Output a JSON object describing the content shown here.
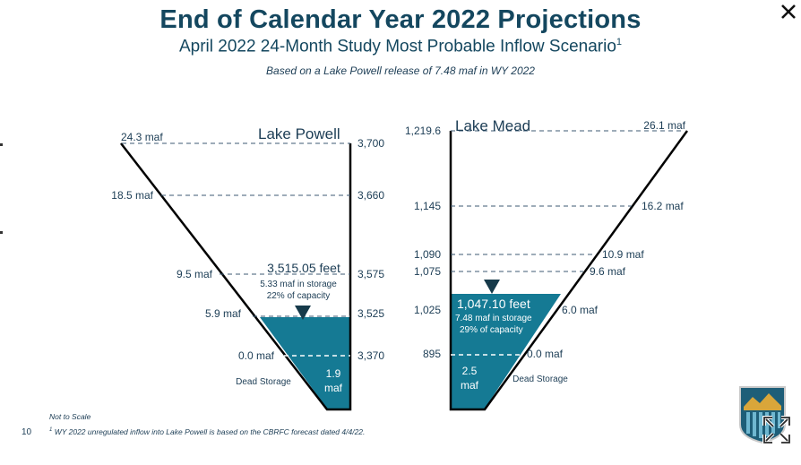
{
  "header": {
    "title": "End of Calendar Year 2022 Projections",
    "subtitle": "April 2022 24-Month Study Most Probable Inflow Scenario",
    "subtitle_sup": "1",
    "basis": "Based on a Lake Powell release of 7.48 maf in WY 2022"
  },
  "powell": {
    "name": "Lake Powell",
    "levels": [
      {
        "elevation": "3,700",
        "storage": "24.3 maf"
      },
      {
        "elevation": "3,660",
        "storage": "18.5 maf"
      },
      {
        "elevation": "3,575",
        "storage": "9.5 maf"
      },
      {
        "elevation": "3,525",
        "storage": "5.9 maf"
      },
      {
        "elevation": "3,370",
        "storage": "0.0 maf"
      }
    ],
    "projection": {
      "elevation": "3,515.05 feet",
      "storage": "5.33 maf in storage",
      "capacity": "22% of capacity"
    },
    "dead_storage_label": "Dead Storage",
    "dead_storage_value": "1.9",
    "dead_storage_unit": "maf"
  },
  "mead": {
    "name": "Lake Mead",
    "levels": [
      {
        "elevation": "1,219.6",
        "storage": "26.1 maf"
      },
      {
        "elevation": "1,145",
        "storage": "16.2 maf"
      },
      {
        "elevation": "1,090",
        "storage": "10.9 maf"
      },
      {
        "elevation": "1,075",
        "storage": "9.6 maf"
      },
      {
        "elevation": "1,025",
        "storage": "6.0 maf"
      },
      {
        "elevation": "895",
        "storage": "0.0 maf"
      }
    ],
    "projection": {
      "elevation": "1,047.10 feet",
      "storage": "7.48 maf in storage",
      "capacity": "29% of capacity"
    },
    "dead_storage_label": "Dead Storage",
    "dead_storage_value": "2.5",
    "dead_storage_unit": "maf"
  },
  "footer": {
    "not_to_scale": "Not to Scale",
    "footnote_mark": "1",
    "footnote": "WY 2022 unregulated inflow into Lake Powell is based on the CBRFC forecast dated 4/4/22.",
    "page_number": "10"
  },
  "colors": {
    "water": "#157a94",
    "title": "#14475f",
    "text": "#1c3d55",
    "line": "#000000"
  },
  "icons": {
    "close": "close-icon",
    "expand": "expand-icon",
    "logo": "reclamation-logo"
  }
}
